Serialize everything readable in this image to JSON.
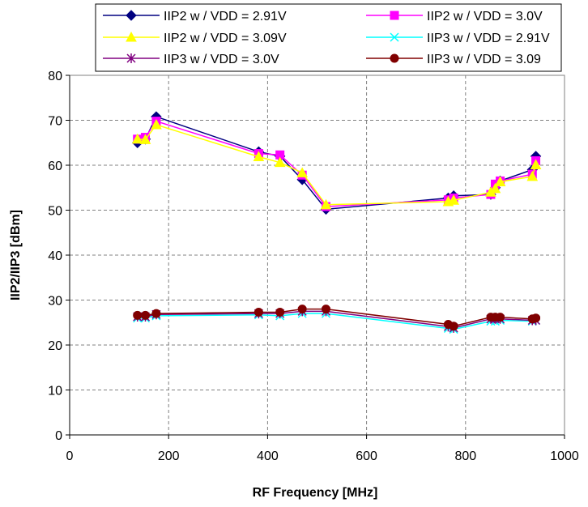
{
  "chart_data": {
    "type": "line",
    "title": "",
    "xlabel": "RF Frequency [MHz]",
    "ylabel": "IIP2/IIP3   [dBm]",
    "xlim": [
      0,
      1000
    ],
    "ylim": [
      0,
      80
    ],
    "xticks": [
      0,
      200,
      400,
      600,
      800,
      1000
    ],
    "yticks": [
      0,
      10,
      20,
      30,
      40,
      50,
      60,
      70,
      80
    ],
    "grid": true,
    "legend_position": "top",
    "x": [
      137,
      153,
      175,
      382,
      425,
      470,
      518,
      765,
      776,
      851,
      860,
      870,
      935,
      942
    ],
    "series": [
      {
        "name": "IIP2 w / VDD = 2.91V",
        "color": "#000080",
        "marker": "diamond",
        "values": [
          65.0,
          65.8,
          70.8,
          63.0,
          62.0,
          56.8,
          50.2,
          52.7,
          53.2,
          53.5,
          55.0,
          56.5,
          59.0,
          62.0
        ]
      },
      {
        "name": "IIP2 w / VDD = 3.0V",
        "color": "#FF00FF",
        "marker": "square",
        "values": [
          65.8,
          66.2,
          69.8,
          62.6,
          62.3,
          57.8,
          50.8,
          52.3,
          52.7,
          53.5,
          55.8,
          56.5,
          58.0,
          61.0
        ]
      },
      {
        "name": "IIP2 w / VDD = 3.09V",
        "color": "#FFFF00",
        "marker": "triangle",
        "values": [
          65.8,
          65.7,
          69.0,
          61.9,
          60.6,
          58.3,
          51.2,
          51.9,
          52.2,
          54.0,
          54.8,
          56.3,
          57.5,
          60.1
        ]
      },
      {
        "name": "IIP3 w / VDD = 2.91V",
        "color": "#00FFFF",
        "marker": "x",
        "values": [
          26.0,
          26.0,
          26.5,
          26.7,
          26.5,
          27.0,
          27.0,
          23.7,
          23.5,
          25.3,
          25.3,
          25.5,
          25.3,
          25.5
        ]
      },
      {
        "name": "IIP3 w / VDD = 3.0V",
        "color": "#800080",
        "marker": "star",
        "values": [
          26.3,
          26.3,
          26.8,
          27.0,
          27.0,
          27.5,
          27.5,
          24.1,
          23.8,
          25.8,
          25.8,
          25.8,
          25.5,
          25.5
        ]
      },
      {
        "name": "IIP3 w / VDD = 3.09",
        "color": "#800000",
        "marker": "circle",
        "values": [
          26.6,
          26.6,
          27.0,
          27.3,
          27.3,
          28.0,
          28.0,
          24.6,
          24.2,
          26.2,
          26.2,
          26.2,
          25.8,
          26.0
        ]
      }
    ]
  }
}
